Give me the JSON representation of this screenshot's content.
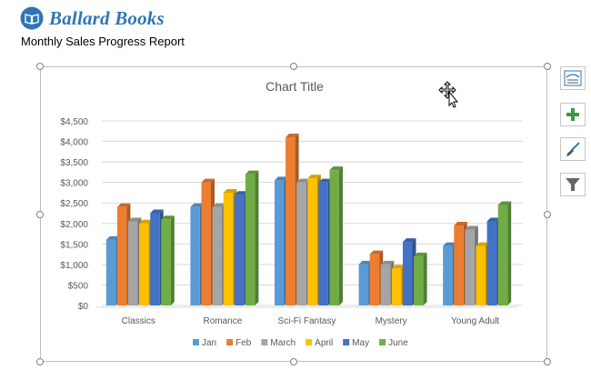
{
  "header": {
    "brand": "Ballard Books",
    "report_title": "Monthly Sales Progress Report"
  },
  "side_buttons": [
    {
      "icon": "layout-options-icon"
    },
    {
      "icon": "plus-icon",
      "color": "#3c9a40"
    },
    {
      "icon": "brush-icon"
    },
    {
      "icon": "filter-icon"
    }
  ],
  "chart_data": {
    "type": "bar",
    "title": "Chart Title",
    "categories": [
      "Classics",
      "Romance",
      "Sci-Fi Fantasy",
      "Mystery",
      "Young Adult"
    ],
    "series": [
      {
        "name": "Jan",
        "color": "#5b9bd5",
        "values": [
          1600,
          2400,
          3050,
          1000,
          1450
        ]
      },
      {
        "name": "Feb",
        "color": "#ed7d31",
        "values": [
          2400,
          3000,
          4100,
          1250,
          1950
        ]
      },
      {
        "name": "March",
        "color": "#a5a5a5",
        "values": [
          2050,
          2400,
          3000,
          1000,
          1850
        ]
      },
      {
        "name": "April",
        "color": "#ffc000",
        "values": [
          2000,
          2750,
          3100,
          900,
          1450
        ]
      },
      {
        "name": "May",
        "color": "#4472c4",
        "values": [
          2250,
          2700,
          3000,
          1550,
          2050
        ]
      },
      {
        "name": "June",
        "color": "#70ad47",
        "values": [
          2100,
          3200,
          3300,
          1200,
          2450
        ]
      }
    ],
    "ylim": [
      0,
      4500
    ],
    "ytick_labels": [
      "$0",
      "$500",
      "$1,000",
      "$1,500",
      "$2,000",
      "$2,500",
      "$3,000",
      "$3,500",
      "$4,000",
      "$4,500"
    ],
    "grid": true,
    "legend": "bottom"
  }
}
